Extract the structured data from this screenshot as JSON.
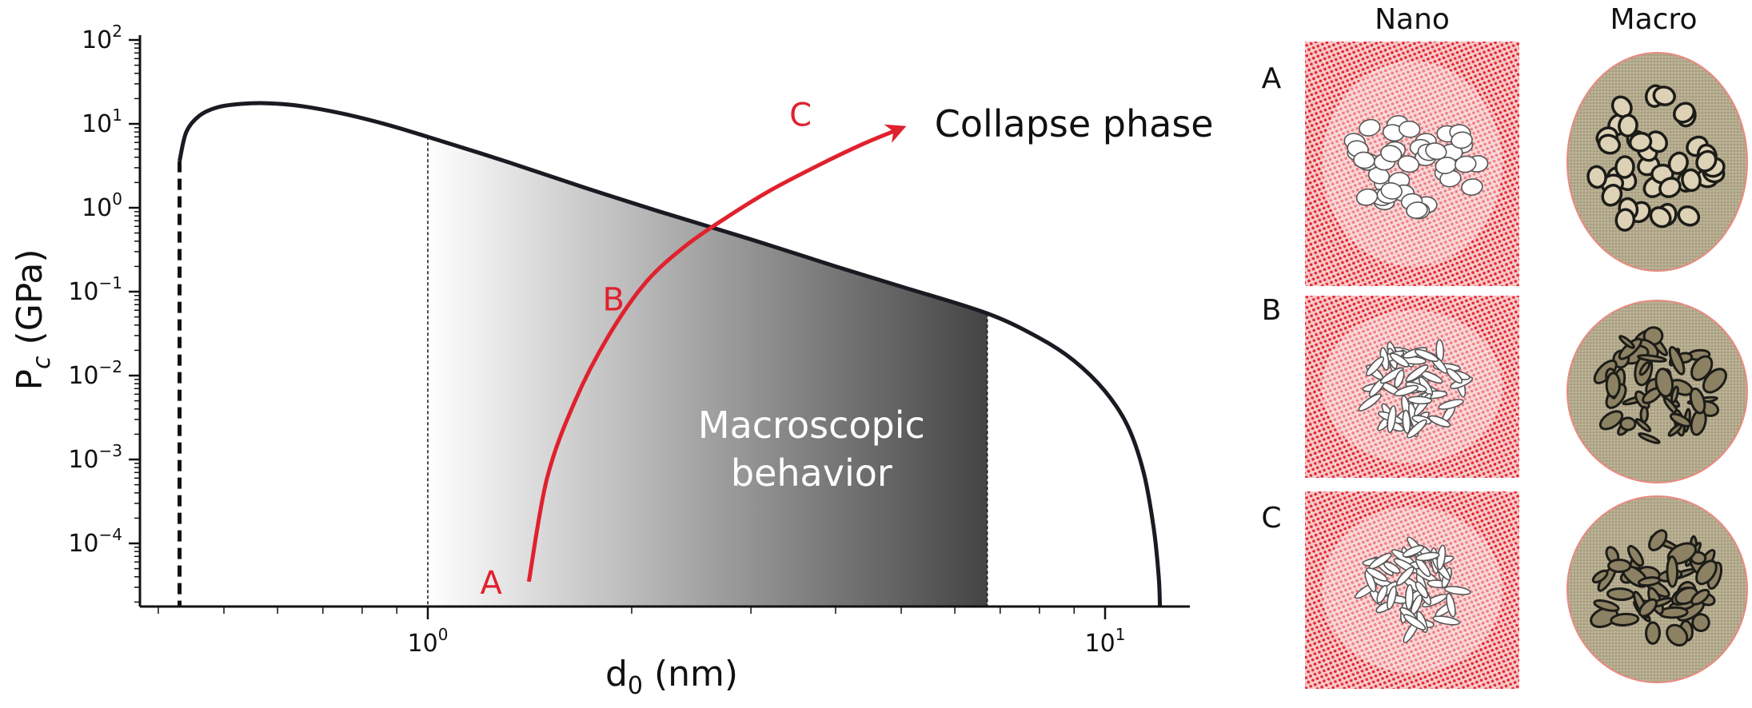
{
  "chart_data": {
    "type": "line",
    "xscale": "log",
    "yscale": "log",
    "xlabel": "d",
    "xlabel_sub": "0",
    "xlabel_unit": "(nm)",
    "ylabel": "P",
    "ylabel_sub": "c",
    "ylabel_unit": "(GPa)",
    "xlim": [
      0.375,
      13.3
    ],
    "ylim": [
      1.78e-05,
      100
    ],
    "x_ticks": [
      {
        "base": "10",
        "exp": "0",
        "value": 1
      },
      {
        "base": "10",
        "exp": "1",
        "value": 10
      }
    ],
    "y_ticks": [
      {
        "base": "10",
        "exp": "2",
        "value": 100
      },
      {
        "base": "10",
        "exp": "1",
        "value": 10
      },
      {
        "base": "10",
        "exp": "0",
        "value": 1
      },
      {
        "base": "10",
        "exp": "−1",
        "value": 0.1
      },
      {
        "base": "10",
        "exp": "−2",
        "value": 0.01
      },
      {
        "base": "10",
        "exp": "−3",
        "value": 0.001
      },
      {
        "base": "10",
        "exp": "−4",
        "value": 0.0001
      }
    ],
    "grid": false,
    "curve": {
      "color": "#1a1a22",
      "x": [
        0.43,
        0.44,
        0.46,
        0.49,
        0.53,
        0.58,
        0.65,
        0.75,
        0.87,
        1.0,
        1.3,
        1.7,
        2.2,
        3.0,
        4.0,
        5.0,
        6.7,
        8.0,
        9.0,
        10.0,
        10.8,
        11.4,
        11.8,
        12.0,
        12.05
      ],
      "y": [
        3.6,
        8.0,
        12.5,
        15.8,
        17.3,
        17.6,
        16.3,
        13.2,
        9.8,
        7.0,
        3.6,
        1.75,
        0.9,
        0.42,
        0.2,
        0.115,
        0.055,
        0.028,
        0.015,
        0.0065,
        0.0025,
        0.0007,
        0.00015,
        4e-05,
        1.78e-05
      ]
    },
    "dashed_left_boundary": {
      "x": 0.43,
      "y_top": 3.6
    },
    "dotted_lines": [
      {
        "x": 1.0
      },
      {
        "x": 6.7
      }
    ],
    "shaded_region": {
      "x_from": 1.0,
      "x_to": 6.7,
      "color_from": "#ffffff",
      "color_to": "#444444",
      "label_line1": "Macroscopic",
      "label_line2": "behavior"
    },
    "path_arrow": {
      "color": "#e0212e",
      "x": [
        1.41,
        1.5,
        1.65,
        1.85,
        2.1,
        2.4,
        2.75,
        3.2,
        3.8,
        4.4,
        4.9
      ],
      "y": [
        3.5e-05,
        0.0006,
        0.005,
        0.03,
        0.13,
        0.35,
        0.75,
        1.6,
        3.3,
        5.8,
        8.3
      ],
      "labels": [
        {
          "text": "A",
          "x": 1.24,
          "y": 2.5e-05
        },
        {
          "text": "B",
          "x": 1.88,
          "y": 0.06
        },
        {
          "text": "C",
          "x": 3.55,
          "y": 9.5
        }
      ]
    },
    "annotation": {
      "text": "Collapse phase",
      "x": 5.6,
      "y": 10
    }
  },
  "panels": {
    "col_nano": "Nano",
    "col_macro": "Macro",
    "rows": [
      "A",
      "B",
      "C"
    ],
    "nano_color": "#e3262e",
    "macro_bg": "#b8ae92"
  }
}
